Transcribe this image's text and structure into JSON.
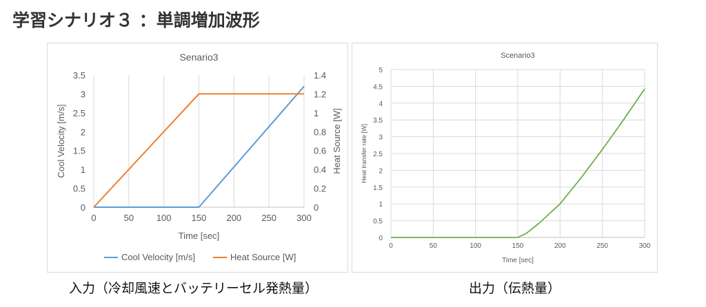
{
  "page": {
    "title": "学習シナリオ３ ：単調増加波形",
    "caption_left": "入力（冷却風速とバッテリーセル発熱量）",
    "caption_right": "出力（伝熱量）"
  },
  "chart_data": [
    {
      "type": "line",
      "title": "Senario3",
      "xlabel": "Time [sec]",
      "ylabel": "Cool Velocity [m/s]",
      "y2label": "Heat Source [W]",
      "xlim": [
        0,
        300
      ],
      "ylim": [
        0,
        3.5
      ],
      "y2lim": [
        0,
        1.4
      ],
      "xticks": [
        0,
        50,
        100,
        150,
        200,
        250,
        300
      ],
      "yticks": [
        0,
        0.5,
        1,
        1.5,
        2,
        2.5,
        3,
        3.5
      ],
      "y2ticks": [
        0,
        0.2,
        0.4,
        0.6,
        0.8,
        1,
        1.2,
        1.4
      ],
      "grid": "vertical",
      "legend": "bottom",
      "series": [
        {
          "name": "Cool Velocity [m/s]",
          "axis": "left",
          "color": "#5B9BD5",
          "x": [
            0,
            150,
            300
          ],
          "y": [
            0,
            0,
            3.2
          ]
        },
        {
          "name": "Heat Source [W]",
          "axis": "right",
          "color": "#ED7D31",
          "x": [
            0,
            150,
            300
          ],
          "y": [
            0,
            1.2,
            1.2
          ]
        }
      ]
    },
    {
      "type": "line",
      "title": "Scenario3",
      "xlabel": "Time [sec]",
      "ylabel": "Heat transfer rate [W]",
      "xlim": [
        0,
        300
      ],
      "ylim": [
        0,
        5
      ],
      "xticks": [
        0,
        50,
        100,
        150,
        200,
        250,
        300
      ],
      "yticks": [
        0,
        0.5,
        1,
        1.5,
        2,
        2.5,
        3,
        3.5,
        4,
        4.5,
        5
      ],
      "grid": "both",
      "legend": "none",
      "series": [
        {
          "color": "#70AD47",
          "x": [
            0,
            150,
            160,
            175,
            200,
            225,
            250,
            275,
            300
          ],
          "y": [
            0,
            0,
            0.12,
            0.42,
            1.0,
            1.78,
            2.62,
            3.5,
            4.42
          ]
        }
      ]
    }
  ]
}
